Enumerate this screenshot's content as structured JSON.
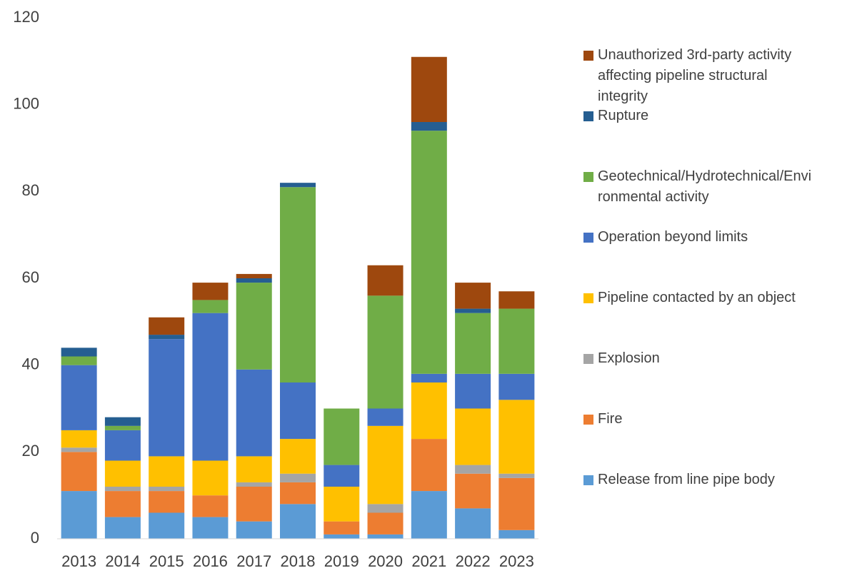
{
  "chart_data": {
    "type": "stacked_bar",
    "categories": [
      "2013",
      "2014",
      "2015",
      "2016",
      "2017",
      "2018",
      "2019",
      "2020",
      "2021",
      "2022",
      "2023"
    ],
    "series": [
      {
        "name": "Release from line pipe body",
        "color": "#5b9bd5",
        "values": [
          11,
          5,
          6,
          5,
          4,
          8,
          1,
          1,
          11,
          7,
          2
        ]
      },
      {
        "name": "Fire",
        "color": "#ed7d31",
        "values": [
          9,
          6,
          5,
          5,
          8,
          5,
          3,
          5,
          12,
          8,
          12
        ]
      },
      {
        "name": "Explosion",
        "color": "#a5a5a5",
        "values": [
          1,
          1,
          1,
          0,
          1,
          2,
          0,
          2,
          0,
          2,
          1
        ]
      },
      {
        "name": "Pipeline contacted by an object",
        "color": "#ffc000",
        "values": [
          4,
          6,
          7,
          8,
          6,
          8,
          8,
          18,
          13,
          13,
          17
        ]
      },
      {
        "name": "Operation beyond limits",
        "color": "#4472c4",
        "values": [
          15,
          7,
          27,
          34,
          20,
          13,
          5,
          4,
          2,
          8,
          6
        ]
      },
      {
        "name": "Geotechnical/Hydrotechnical/Environmental activity",
        "color": "#70ad47",
        "values": [
          2,
          1,
          0,
          3,
          20,
          45,
          13,
          26,
          56,
          14,
          15
        ]
      },
      {
        "name": "Rupture",
        "color": "#255e91",
        "values": [
          2,
          2,
          1,
          0,
          1,
          1,
          0,
          0,
          2,
          1,
          0
        ]
      },
      {
        "name": "Unauthorized 3rd-party activity affecting pipeline structural integrity",
        "color": "#9e480e",
        "values": [
          0,
          0,
          4,
          4,
          1,
          0,
          0,
          7,
          15,
          6,
          4
        ]
      }
    ],
    "ylim": [
      0,
      120
    ],
    "yticks": [
      0,
      20,
      40,
      60,
      80,
      100,
      120
    ],
    "grid": false,
    "legend": "right"
  }
}
